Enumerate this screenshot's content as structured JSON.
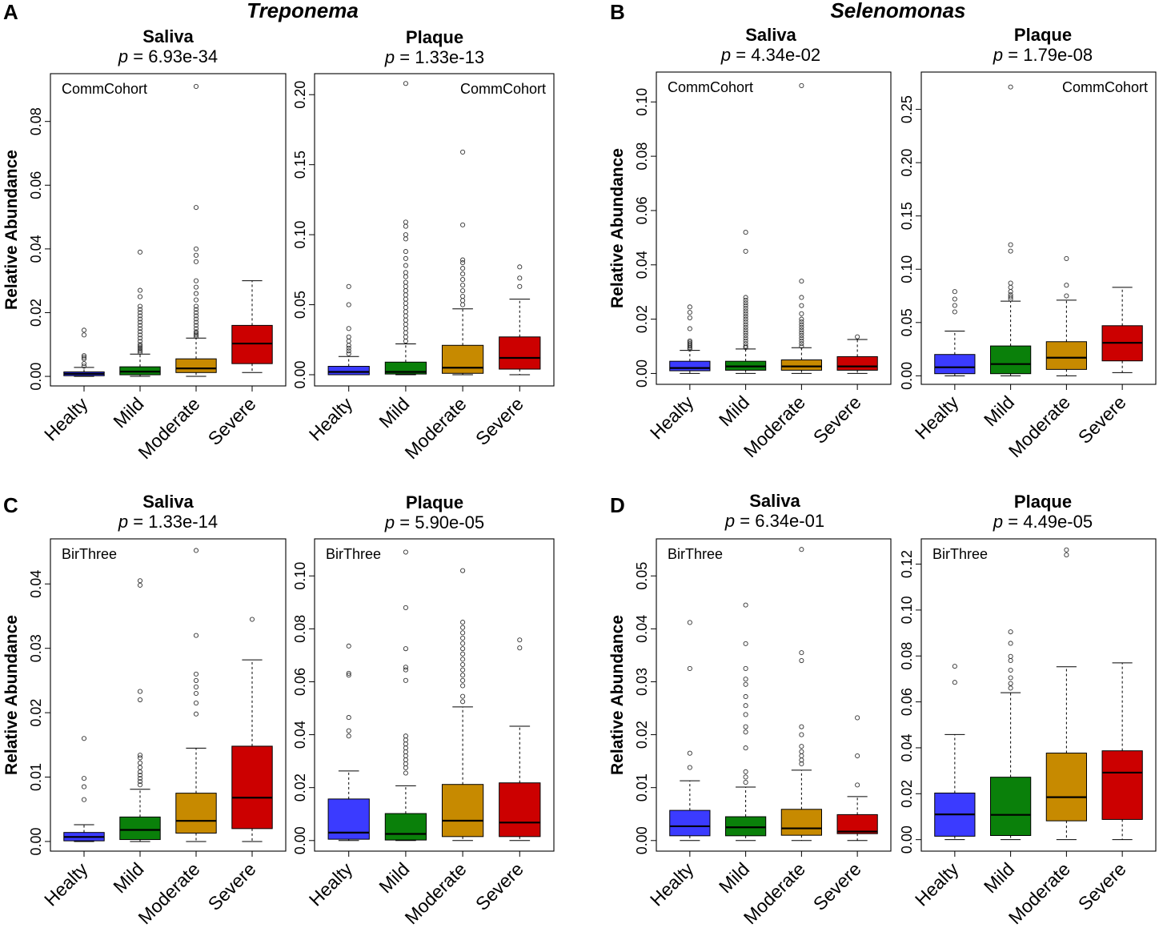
{
  "figure": {
    "panels": [
      {
        "letter": "A",
        "genus": "Treponema"
      },
      {
        "letter": "B",
        "genus": "Selenomonas"
      },
      {
        "letter": "C",
        "genus": ""
      },
      {
        "letter": "D",
        "genus": ""
      }
    ],
    "colors": {
      "Healty": "#3b3bff",
      "Mild": "#0a800a",
      "Moderate": "#c78a00",
      "Severe": "#cc0000"
    }
  },
  "chart_data": [
    {
      "type": "box",
      "panel": "A",
      "title": "Saliva",
      "p_prefix": "p",
      "p_text": " = 6.93e-34",
      "cohort": "CommCohort",
      "cohort_pos": "top-left",
      "ylabel": "Relative Abundance",
      "categories": [
        "Healty",
        "Mild",
        "Moderate",
        "Severe"
      ],
      "ylim": [
        -0.003,
        0.095
      ],
      "yticks": [
        0,
        0.02,
        0.04,
        0.06,
        0.08
      ],
      "yticklabels": [
        "0.00",
        "0.02",
        "0.04",
        "0.06",
        "0.08"
      ],
      "boxes": [
        {
          "low": 0,
          "q1": 0.0002,
          "median": 0.0008,
          "q3": 0.0014,
          "high": 0.0028,
          "outliers": [
            0.0032,
            0.004,
            0.0055,
            0.006,
            0.0065,
            0.013,
            0.0145
          ]
        },
        {
          "low": 0,
          "q1": 0.0005,
          "median": 0.0015,
          "q3": 0.003,
          "high": 0.007,
          "outliers": [
            0.0075,
            0.008,
            0.0085,
            0.009,
            0.0095,
            0.01,
            0.011,
            0.012,
            0.013,
            0.014,
            0.015,
            0.016,
            0.017,
            0.018,
            0.019,
            0.02,
            0.021,
            0.022,
            0.025,
            0.027,
            0.039
          ]
        },
        {
          "low": 0,
          "q1": 0.0012,
          "median": 0.0025,
          "q3": 0.0055,
          "high": 0.012,
          "outliers": [
            0.0125,
            0.013,
            0.0135,
            0.014,
            0.015,
            0.016,
            0.017,
            0.018,
            0.019,
            0.02,
            0.021,
            0.022,
            0.024,
            0.026,
            0.028,
            0.03,
            0.036,
            0.038,
            0.04,
            0.053,
            0.091
          ]
        },
        {
          "low": 0.0012,
          "q1": 0.004,
          "median": 0.0103,
          "q3": 0.016,
          "high": 0.03,
          "outliers": []
        }
      ]
    },
    {
      "type": "box",
      "panel": "A",
      "title": "Plaque",
      "p_prefix": "p",
      "p_text": " = 1.33e-13",
      "cohort": "CommCohort",
      "cohort_pos": "top-right",
      "ylabel": "",
      "categories": [
        "Healty",
        "Mild",
        "Moderate",
        "Severe"
      ],
      "ylim": [
        -0.008,
        0.215
      ],
      "yticks": [
        0,
        0.05,
        0.1,
        0.15,
        0.2
      ],
      "yticklabels": [
        "0.00",
        "0.05",
        "0.10",
        "0.15",
        "0.20"
      ],
      "boxes": [
        {
          "low": 0,
          "q1": 0,
          "median": 0.002,
          "q3": 0.006,
          "high": 0.013,
          "outliers": [
            0.015,
            0.017,
            0.019,
            0.021,
            0.024,
            0.027,
            0.033,
            0.05,
            0.063
          ]
        },
        {
          "low": 0,
          "q1": 0.0005,
          "median": 0.002,
          "q3": 0.009,
          "high": 0.022,
          "outliers": [
            0.024,
            0.027,
            0.03,
            0.033,
            0.036,
            0.039,
            0.042,
            0.045,
            0.048,
            0.051,
            0.054,
            0.057,
            0.06,
            0.063,
            0.066,
            0.07,
            0.073,
            0.078,
            0.083,
            0.088,
            0.097,
            0.1,
            0.106,
            0.109,
            0.208
          ]
        },
        {
          "low": 0,
          "q1": 0.001,
          "median": 0.005,
          "q3": 0.021,
          "high": 0.047,
          "outliers": [
            0.05,
            0.053,
            0.056,
            0.06,
            0.064,
            0.068,
            0.072,
            0.076,
            0.08,
            0.082,
            0.107,
            0.159
          ]
        },
        {
          "low": 0,
          "q1": 0.004,
          "median": 0.012,
          "q3": 0.027,
          "high": 0.054,
          "outliers": [
            0.063,
            0.069,
            0.077
          ]
        }
      ]
    },
    {
      "type": "box",
      "panel": "B",
      "title": "Saliva",
      "p_prefix": "p",
      "p_text": " = 4.34e-02",
      "cohort": "CommCohort",
      "cohort_pos": "top-left",
      "ylabel": "Relative Abundance",
      "categories": [
        "Healty",
        "Mild",
        "Moderate",
        "Severe"
      ],
      "ylim": [
        -0.004,
        0.111
      ],
      "yticks": [
        0,
        0.02,
        0.04,
        0.06,
        0.08,
        0.1
      ],
      "yticklabels": [
        "0.00",
        "0.02",
        "0.04",
        "0.06",
        "0.08",
        "0.10"
      ],
      "boxes": [
        {
          "low": 0,
          "q1": 0.001,
          "median": 0.002,
          "q3": 0.0045,
          "high": 0.0085,
          "outliers": [
            0.009,
            0.0095,
            0.01,
            0.0105,
            0.011,
            0.0115,
            0.012,
            0.0165,
            0.0205,
            0.0225,
            0.0245
          ]
        },
        {
          "low": 0,
          "q1": 0.0012,
          "median": 0.0026,
          "q3": 0.0045,
          "high": 0.009,
          "outliers": [
            0.0095,
            0.01,
            0.011,
            0.012,
            0.013,
            0.014,
            0.015,
            0.016,
            0.017,
            0.018,
            0.019,
            0.02,
            0.021,
            0.022,
            0.023,
            0.024,
            0.025,
            0.026,
            0.027,
            0.028,
            0.045,
            0.052
          ]
        },
        {
          "low": 0,
          "q1": 0.0012,
          "median": 0.0026,
          "q3": 0.005,
          "high": 0.0095,
          "outliers": [
            0.01,
            0.011,
            0.012,
            0.013,
            0.014,
            0.015,
            0.016,
            0.017,
            0.018,
            0.019,
            0.02,
            0.022,
            0.025,
            0.028,
            0.034,
            0.106
          ]
        },
        {
          "low": 0,
          "q1": 0.0012,
          "median": 0.0026,
          "q3": 0.0062,
          "high": 0.0125,
          "outliers": [
            0.0135
          ]
        }
      ]
    },
    {
      "type": "box",
      "panel": "B",
      "title": "Plaque",
      "p_prefix": "p",
      "p_text": " = 1.79e-08",
      "cohort": "CommCohort",
      "cohort_pos": "top-right",
      "ylabel": "",
      "categories": [
        "Healty",
        "Mild",
        "Moderate",
        "Severe"
      ],
      "ylim": [
        -0.008,
        0.285
      ],
      "yticks": [
        0,
        0.05,
        0.1,
        0.15,
        0.2,
        0.25
      ],
      "yticklabels": [
        "0.00",
        "0.05",
        "0.10",
        "0.15",
        "0.20",
        "0.25"
      ],
      "boxes": [
        {
          "low": 0,
          "q1": 0.002,
          "median": 0.008,
          "q3": 0.02,
          "high": 0.042,
          "outliers": [
            0.06,
            0.066,
            0.072,
            0.079
          ]
        },
        {
          "low": 0,
          "q1": 0.002,
          "median": 0.011,
          "q3": 0.028,
          "high": 0.07,
          "outliers": [
            0.072,
            0.074,
            0.076,
            0.079,
            0.083,
            0.087,
            0.117,
            0.123,
            0.271
          ]
        },
        {
          "low": 0,
          "q1": 0.006,
          "median": 0.017,
          "q3": 0.032,
          "high": 0.071,
          "outliers": [
            0.075,
            0.085,
            0.11
          ]
        },
        {
          "low": 0.003,
          "q1": 0.014,
          "median": 0.031,
          "q3": 0.047,
          "high": 0.083,
          "outliers": []
        }
      ]
    },
    {
      "type": "box",
      "panel": "C",
      "title": "Saliva",
      "p_prefix": "p",
      "p_text": " = 1.33e-14",
      "cohort": "BirThree",
      "cohort_pos": "top-left",
      "ylabel": "Relative Abundance",
      "categories": [
        "Healty",
        "Mild",
        "Moderate",
        "Severe"
      ],
      "ylim": [
        -0.0015,
        0.047
      ],
      "yticks": [
        0,
        0.01,
        0.02,
        0.03,
        0.04
      ],
      "yticklabels": [
        "0.00",
        "0.01",
        "0.02",
        "0.03",
        "0.04"
      ],
      "boxes": [
        {
          "low": 0,
          "q1": 0.0001,
          "median": 0.0007,
          "q3": 0.0014,
          "high": 0.0026,
          "outliers": [
            0.0065,
            0.0085,
            0.0098,
            0.016
          ]
        },
        {
          "low": 0,
          "q1": 0.0003,
          "median": 0.0018,
          "q3": 0.0038,
          "high": 0.0081,
          "outliers": [
            0.0088,
            0.0093,
            0.0098,
            0.0103,
            0.0108,
            0.0115,
            0.0122,
            0.013,
            0.0134,
            0.022,
            0.0233,
            0.0398,
            0.0405
          ]
        },
        {
          "low": 0,
          "q1": 0.0013,
          "median": 0.0032,
          "q3": 0.0075,
          "high": 0.0145,
          "outliers": [
            0.0198,
            0.0215,
            0.023,
            0.024,
            0.025,
            0.026,
            0.032,
            0.0452
          ]
        },
        {
          "low": 0,
          "q1": 0.002,
          "median": 0.0068,
          "q3": 0.0148,
          "high": 0.0282,
          "outliers": [
            0.0345
          ]
        }
      ]
    },
    {
      "type": "box",
      "panel": "C",
      "title": "Plaque",
      "p_prefix": "p",
      "p_text": " = 5.90e-05",
      "cohort": "BirThree",
      "cohort_pos": "top-left",
      "ylabel": "",
      "categories": [
        "Healty",
        "Mild",
        "Moderate",
        "Severe"
      ],
      "ylim": [
        -0.004,
        0.114
      ],
      "yticks": [
        0,
        0.02,
        0.04,
        0.06,
        0.08,
        0.1
      ],
      "yticklabels": [
        "0.00",
        "0.02",
        "0.04",
        "0.06",
        "0.08",
        "0.10"
      ],
      "boxes": [
        {
          "low": 0,
          "q1": 0.0005,
          "median": 0.003,
          "q3": 0.0157,
          "high": 0.0263,
          "outliers": [
            0.0395,
            0.0415,
            0.0465,
            0.0625,
            0.0632,
            0.0735
          ]
        },
        {
          "low": 0,
          "q1": 0.0002,
          "median": 0.0025,
          "q3": 0.0102,
          "high": 0.0207,
          "outliers": [
            0.0255,
            0.0275,
            0.029,
            0.0305,
            0.032,
            0.0335,
            0.035,
            0.0365,
            0.038,
            0.0395,
            0.0605,
            0.0645,
            0.0655,
            0.0725,
            0.088,
            0.109
          ]
        },
        {
          "low": 0,
          "q1": 0.0015,
          "median": 0.0075,
          "q3": 0.0212,
          "high": 0.0505,
          "outliers": [
            0.0525,
            0.0545,
            0.0585,
            0.0605,
            0.0625,
            0.0645,
            0.0665,
            0.0685,
            0.0705,
            0.0725,
            0.0745,
            0.0765,
            0.0785,
            0.0805,
            0.0825,
            0.102
          ]
        },
        {
          "low": 0,
          "q1": 0.0015,
          "median": 0.0068,
          "q3": 0.0218,
          "high": 0.0432,
          "outliers": [
            0.0728,
            0.0758
          ]
        }
      ]
    },
    {
      "type": "box",
      "panel": "D",
      "title": "Saliva",
      "p_prefix": "p",
      "p_text": " = 6.34e-01",
      "cohort": "BirThree",
      "cohort_pos": "top-left",
      "ylabel": "Relative Abundance",
      "categories": [
        "Healty",
        "Mild",
        "Moderate",
        "Severe"
      ],
      "ylim": [
        -0.002,
        0.057
      ],
      "yticks": [
        0,
        0.01,
        0.02,
        0.03,
        0.04,
        0.05
      ],
      "yticklabels": [
        "0.00",
        "0.01",
        "0.02",
        "0.03",
        "0.04",
        "0.05"
      ],
      "boxes": [
        {
          "low": 0,
          "q1": 0.0009,
          "median": 0.0027,
          "q3": 0.0057,
          "high": 0.0113,
          "outliers": [
            0.0138,
            0.0165,
            0.0325,
            0.0412
          ]
        },
        {
          "low": 0,
          "q1": 0.0009,
          "median": 0.0025,
          "q3": 0.0045,
          "high": 0.0101,
          "outliers": [
            0.011,
            0.012,
            0.013,
            0.0175,
            0.0205,
            0.0215,
            0.0238,
            0.0255,
            0.0272,
            0.0295,
            0.0305,
            0.0325,
            0.0372,
            0.0445
          ]
        },
        {
          "low": 0,
          "q1": 0.001,
          "median": 0.0023,
          "q3": 0.0059,
          "high": 0.0133,
          "outliers": [
            0.0145,
            0.0152,
            0.016,
            0.0168,
            0.0178,
            0.02,
            0.0215,
            0.034,
            0.0355,
            0.055
          ]
        },
        {
          "low": 0,
          "q1": 0.0013,
          "median": 0.0017,
          "q3": 0.0049,
          "high": 0.0083,
          "outliers": [
            0.0105,
            0.016,
            0.0232
          ]
        }
      ]
    },
    {
      "type": "box",
      "panel": "D",
      "title": "Plaque",
      "p_prefix": "p",
      "p_text": " = 4.49e-05",
      "cohort": "BirThree",
      "cohort_pos": "top-left",
      "ylabel": "",
      "categories": [
        "Healty",
        "Mild",
        "Moderate",
        "Severe"
      ],
      "ylim": [
        -0.005,
        0.131
      ],
      "yticks": [
        0,
        0.02,
        0.04,
        0.06,
        0.08,
        0.1,
        0.12
      ],
      "yticklabels": [
        "0.00",
        "0.02",
        "0.04",
        "0.06",
        "0.08",
        "0.10",
        "0.12"
      ],
      "boxes": [
        {
          "low": 0,
          "q1": 0.0015,
          "median": 0.011,
          "q3": 0.0203,
          "high": 0.0458,
          "outliers": [
            0.0685,
            0.0755
          ]
        },
        {
          "low": 0,
          "q1": 0.0018,
          "median": 0.0108,
          "q3": 0.0272,
          "high": 0.064,
          "outliers": [
            0.066,
            0.068,
            0.0705,
            0.0738,
            0.078,
            0.0798,
            0.0855,
            0.0905
          ]
        },
        {
          "low": 0,
          "q1": 0.0082,
          "median": 0.0185,
          "q3": 0.0377,
          "high": 0.0753,
          "outliers": [
            0.124,
            0.1262
          ]
        },
        {
          "low": 0,
          "q1": 0.0088,
          "median": 0.0292,
          "q3": 0.0387,
          "high": 0.077,
          "outliers": []
        }
      ]
    }
  ]
}
